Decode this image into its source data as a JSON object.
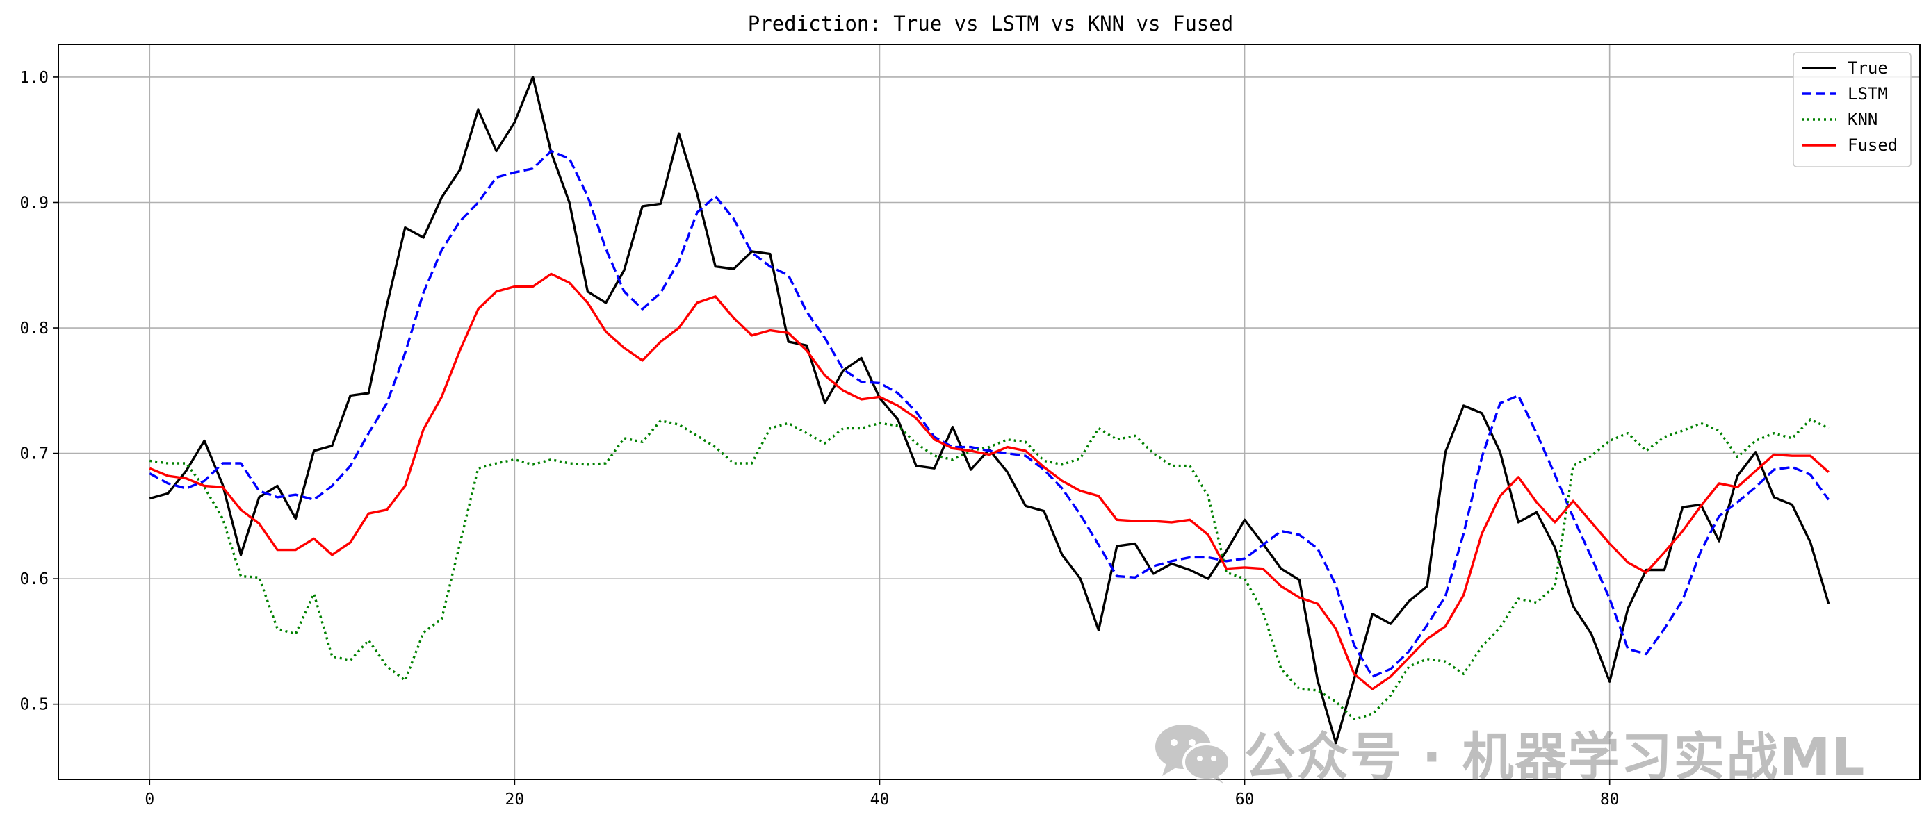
{
  "chart_data": {
    "type": "line",
    "title": "Prediction: True vs LSTM vs KNN vs Fused",
    "xlabel": "",
    "ylabel": "",
    "xlim": [
      -5,
      97
    ],
    "ylim": [
      0.44,
      1.026
    ],
    "xticks": [
      0,
      20,
      40,
      60,
      80
    ],
    "yticks": [
      0.5,
      0.6,
      0.7,
      0.8,
      0.9,
      1.0
    ],
    "xtick_labels": [
      "0",
      "20",
      "40",
      "60",
      "80"
    ],
    "ytick_labels": [
      "0.5",
      "0.6",
      "0.7",
      "0.8",
      "0.9",
      "1.0"
    ],
    "grid": true,
    "legend_position": "top-right",
    "x": [
      0,
      1,
      2,
      3,
      4,
      5,
      6,
      7,
      8,
      9,
      10,
      11,
      12,
      13,
      14,
      15,
      16,
      17,
      18,
      19,
      20,
      21,
      22,
      23,
      24,
      25,
      26,
      27,
      28,
      29,
      30,
      31,
      32,
      33,
      34,
      35,
      36,
      37,
      38,
      39,
      40,
      41,
      42,
      43,
      44,
      45,
      46,
      47,
      48,
      49,
      50,
      51,
      52,
      53,
      54,
      55,
      56,
      57,
      58,
      59,
      60,
      61,
      62,
      63,
      64,
      65,
      66,
      67,
      68,
      69,
      70,
      71,
      72,
      73,
      74,
      75,
      76,
      77,
      78,
      79,
      80,
      81,
      82,
      83,
      84,
      85,
      86,
      87,
      88,
      89,
      90,
      91,
      92
    ],
    "series": [
      {
        "name": "True",
        "color": "#000000",
        "style": "solid",
        "values": [
          0.664,
          0.668,
          0.686,
          0.71,
          0.675,
          0.619,
          0.665,
          0.674,
          0.648,
          0.702,
          0.706,
          0.746,
          0.748,
          0.818,
          0.88,
          0.872,
          0.904,
          0.926,
          0.974,
          0.941,
          0.964,
          1.0,
          0.94,
          0.9,
          0.829,
          0.82,
          0.846,
          0.897,
          0.899,
          0.955,
          0.907,
          0.849,
          0.847,
          0.861,
          0.859,
          0.789,
          0.786,
          0.74,
          0.766,
          0.776,
          0.744,
          0.727,
          0.69,
          0.688,
          0.721,
          0.687,
          0.703,
          0.685,
          0.658,
          0.654,
          0.619,
          0.6,
          0.559,
          0.626,
          0.628,
          0.604,
          0.612,
          0.607,
          0.6,
          0.622,
          0.647,
          0.628,
          0.608,
          0.599,
          0.519,
          0.469,
          0.52,
          0.572,
          0.564,
          0.582,
          0.594,
          0.701,
          0.738,
          0.732,
          0.701,
          0.645,
          0.653,
          0.625,
          0.578,
          0.556,
          0.518,
          0.576,
          0.607,
          0.607,
          0.657,
          0.659,
          0.63,
          0.682,
          0.701,
          0.665,
          0.659,
          0.629,
          0.58
        ]
      },
      {
        "name": "LSTM",
        "color": "#0000ff",
        "style": "dashed",
        "values": [
          0.684,
          0.676,
          0.672,
          0.678,
          0.692,
          0.692,
          0.67,
          0.665,
          0.667,
          0.663,
          0.674,
          0.69,
          0.716,
          0.74,
          0.78,
          0.828,
          0.862,
          0.885,
          0.9,
          0.92,
          0.924,
          0.927,
          0.941,
          0.935,
          0.905,
          0.863,
          0.829,
          0.815,
          0.828,
          0.853,
          0.892,
          0.905,
          0.887,
          0.86,
          0.849,
          0.842,
          0.813,
          0.792,
          0.767,
          0.757,
          0.756,
          0.748,
          0.733,
          0.713,
          0.705,
          0.705,
          0.702,
          0.7,
          0.698,
          0.687,
          0.672,
          0.651,
          0.627,
          0.602,
          0.601,
          0.61,
          0.614,
          0.617,
          0.617,
          0.614,
          0.616,
          0.627,
          0.638,
          0.635,
          0.624,
          0.595,
          0.547,
          0.522,
          0.528,
          0.542,
          0.563,
          0.586,
          0.636,
          0.697,
          0.74,
          0.746,
          0.716,
          0.683,
          0.649,
          0.617,
          0.584,
          0.544,
          0.54,
          0.56,
          0.583,
          0.622,
          0.65,
          0.661,
          0.673,
          0.687,
          0.689,
          0.683,
          0.663
        ]
      },
      {
        "name": "KNN",
        "color": "#008000",
        "style": "dotted",
        "values": [
          0.694,
          0.692,
          0.692,
          0.673,
          0.648,
          0.602,
          0.601,
          0.56,
          0.556,
          0.588,
          0.538,
          0.535,
          0.551,
          0.53,
          0.519,
          0.557,
          0.568,
          0.628,
          0.688,
          0.692,
          0.695,
          0.691,
          0.695,
          0.692,
          0.691,
          0.692,
          0.712,
          0.709,
          0.726,
          0.723,
          0.714,
          0.705,
          0.692,
          0.692,
          0.72,
          0.724,
          0.716,
          0.708,
          0.72,
          0.72,
          0.724,
          0.722,
          0.708,
          0.698,
          0.695,
          0.702,
          0.705,
          0.711,
          0.709,
          0.694,
          0.691,
          0.696,
          0.72,
          0.711,
          0.714,
          0.7,
          0.69,
          0.69,
          0.666,
          0.605,
          0.6,
          0.574,
          0.528,
          0.512,
          0.511,
          0.502,
          0.488,
          0.492,
          0.507,
          0.53,
          0.536,
          0.534,
          0.524,
          0.546,
          0.561,
          0.584,
          0.581,
          0.594,
          0.69,
          0.698,
          0.71,
          0.716,
          0.702,
          0.713,
          0.718,
          0.724,
          0.718,
          0.697,
          0.71,
          0.716,
          0.712,
          0.727,
          0.72
        ]
      },
      {
        "name": "Fused",
        "color": "#ff0000",
        "style": "solid",
        "values": [
          0.688,
          0.682,
          0.68,
          0.674,
          0.673,
          0.655,
          0.644,
          0.623,
          0.623,
          0.632,
          0.619,
          0.629,
          0.652,
          0.655,
          0.674,
          0.719,
          0.745,
          0.782,
          0.815,
          0.829,
          0.833,
          0.833,
          0.843,
          0.836,
          0.82,
          0.797,
          0.784,
          0.774,
          0.789,
          0.8,
          0.82,
          0.825,
          0.808,
          0.794,
          0.798,
          0.796,
          0.782,
          0.762,
          0.75,
          0.743,
          0.745,
          0.738,
          0.728,
          0.711,
          0.704,
          0.702,
          0.699,
          0.705,
          0.702,
          0.689,
          0.678,
          0.67,
          0.666,
          0.647,
          0.646,
          0.646,
          0.645,
          0.647,
          0.635,
          0.608,
          0.609,
          0.608,
          0.594,
          0.585,
          0.58,
          0.56,
          0.524,
          0.512,
          0.522,
          0.537,
          0.552,
          0.562,
          0.587,
          0.636,
          0.666,
          0.681,
          0.661,
          0.645,
          0.662,
          0.645,
          0.628,
          0.613,
          0.605,
          0.621,
          0.638,
          0.658,
          0.676,
          0.673,
          0.686,
          0.699,
          0.698,
          0.698,
          0.685
        ]
      }
    ]
  },
  "watermark": {
    "icon": "wechat-icon",
    "text": "公众号 · 机器学习实战ML"
  }
}
